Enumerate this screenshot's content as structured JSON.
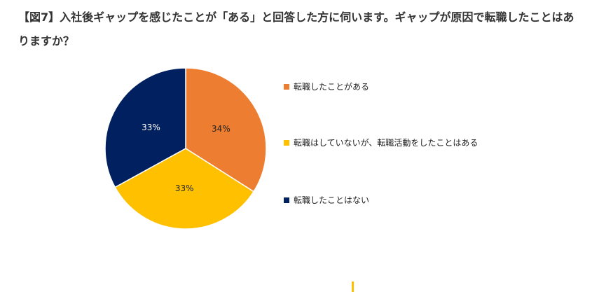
{
  "title": "【図7】入社後ギャップを感じたことが「ある」と回答した方に伺います。ギャップが原因で転職したことはありますか？",
  "chart_data": {
    "type": "pie",
    "title": "【図7】入社後ギャップを感じたことが「ある」と回答した方に伺います。ギャップが原因で転職したことはありますか？",
    "slices": [
      {
        "name": "転職したことがある",
        "value": 34,
        "label": "34%",
        "color": "#ed7d31"
      },
      {
        "name": "転職はしていないが、転職活動をしたことはある",
        "value": 33,
        "label": "33%",
        "color": "#ffc000"
      },
      {
        "name": "転職したことはない",
        "value": 33,
        "label": "33%",
        "color": "#002060"
      }
    ],
    "legend_position": "right",
    "start": "top",
    "direction": "clockwise"
  }
}
